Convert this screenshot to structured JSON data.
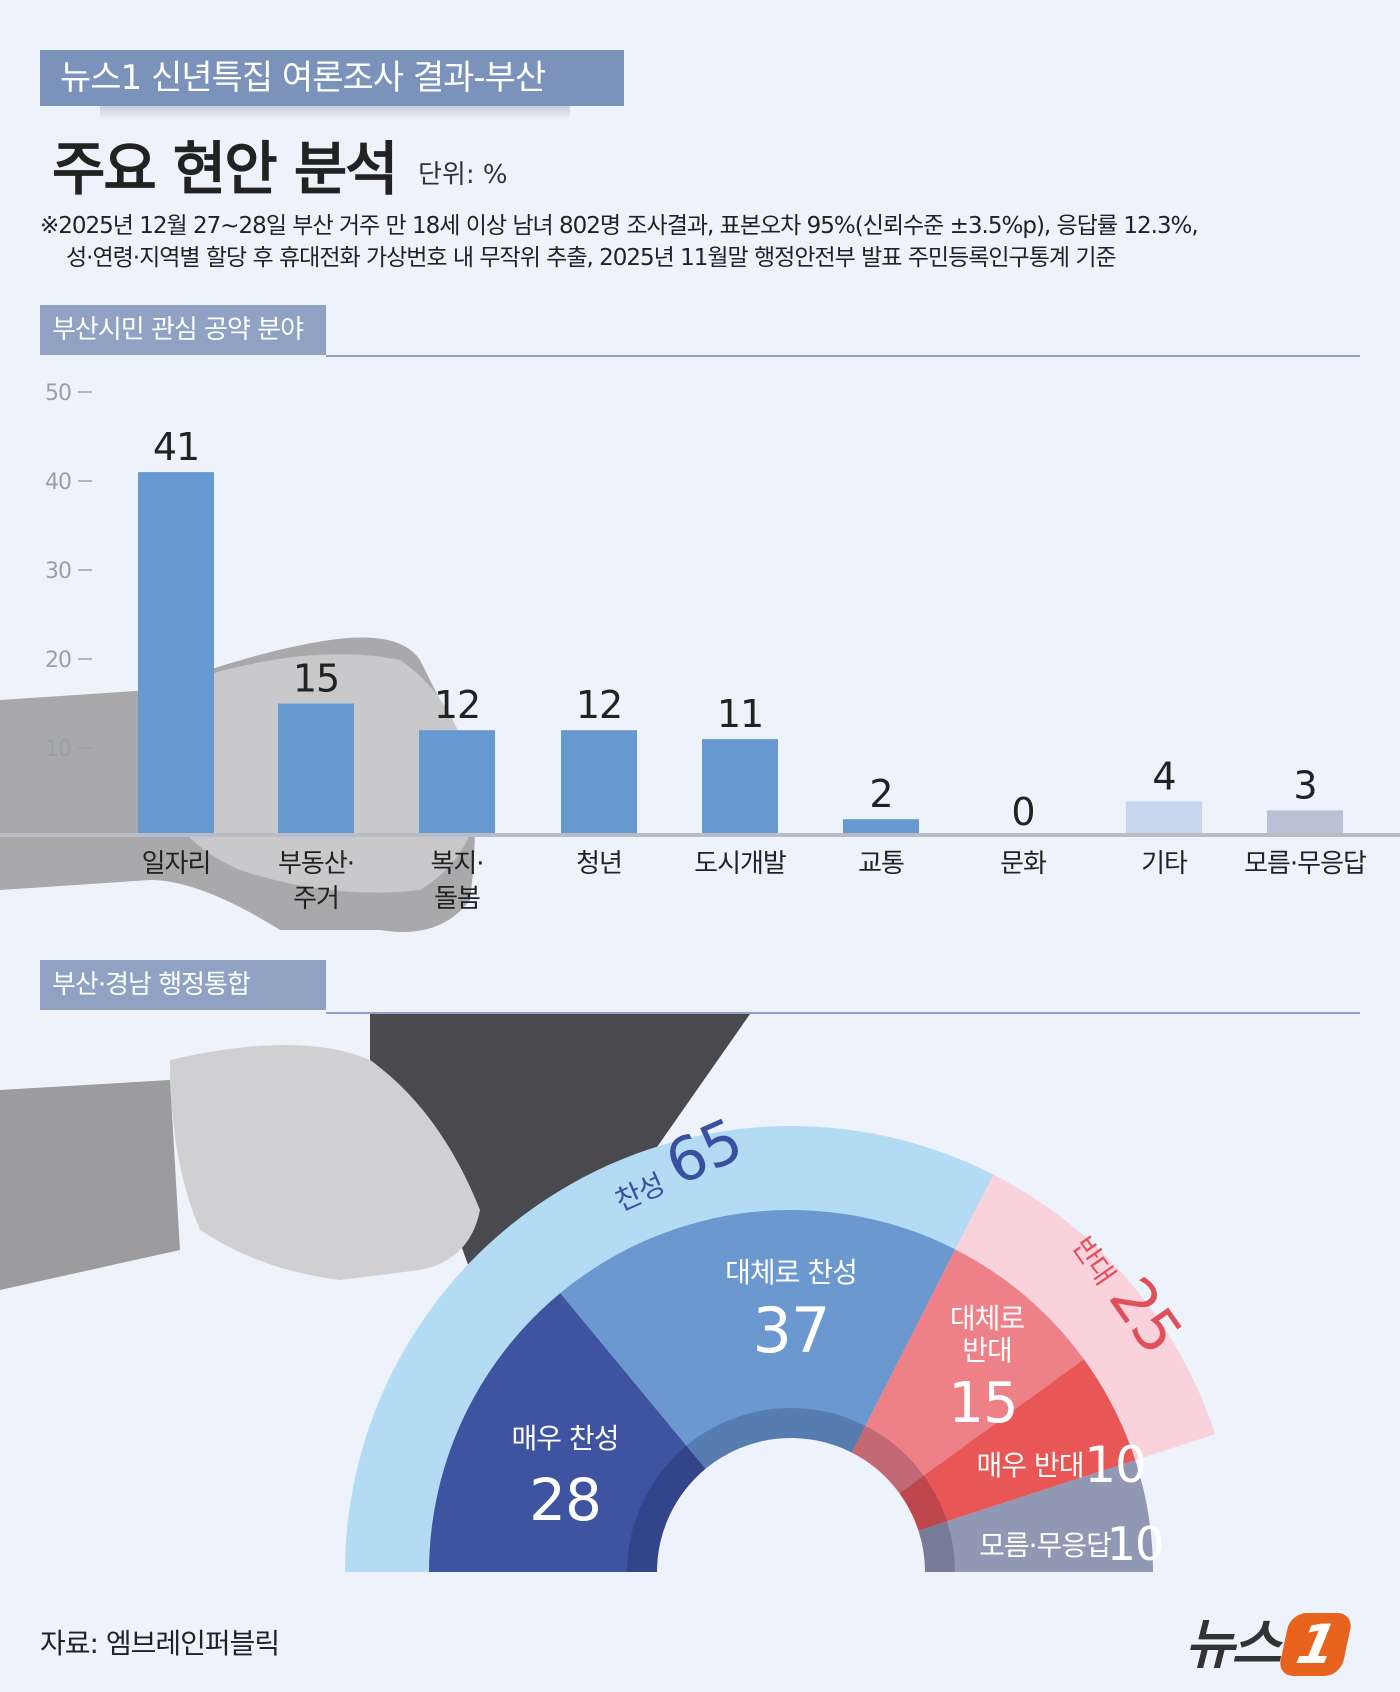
{
  "header": {
    "banner": "뉴스1 신년특집 여론조사 결과-부산",
    "title": "주요 현안 분석",
    "unit": "단위: %",
    "note_line1": "※2025년 12월 27~28일 부산 거주 만 18세 이상 남녀 802명 조사결과, 표본오차 95%(신뢰수준 ±3.5%p), 응답률 12.3%,",
    "note_line2": "성·연령·지역별 할당 후 휴대전화 가상번호 내 무작위 추출,  2025년 11월말 행정안전부 발표 주민등록인구통계 기준"
  },
  "chart_data": [
    {
      "type": "bar",
      "title": "부산시민 관심 공약 분야",
      "ylim": [
        0,
        50
      ],
      "yticks": [
        10,
        20,
        30,
        40,
        50
      ],
      "categories": [
        [
          "일자리"
        ],
        [
          "부동산·",
          "주거"
        ],
        [
          "복지·",
          "돌봄"
        ],
        [
          "청년"
        ],
        [
          "도시개발"
        ],
        [
          "교통"
        ],
        [
          "문화"
        ],
        [
          "기타"
        ],
        [
          "모름·무응답"
        ]
      ],
      "values": [
        41,
        15,
        12,
        12,
        11,
        2,
        0,
        4,
        3
      ],
      "colors": [
        "#6699d0",
        "#6699d0",
        "#6699d0",
        "#6699d0",
        "#6699d0",
        "#6699d0",
        "#6699d0",
        "#c8d6ee",
        "#b9c1d4"
      ]
    },
    {
      "type": "pie",
      "title": "부산·경남 행정통합",
      "style": "semicircle",
      "groups": [
        {
          "label": "찬성",
          "value": 65,
          "color": "#b3dcf4",
          "text_color": "#3a4fa0"
        },
        {
          "label": "반대",
          "value": 25,
          "color": "#f9d2dc",
          "text_color": "#e0505a"
        }
      ],
      "slices": [
        {
          "label": "매우 찬성",
          "value": 28,
          "color": "#3e54a0"
        },
        {
          "label": "대체로 찬성",
          "value": 37,
          "color": "#6b98cf"
        },
        {
          "label": "대체로 반대",
          "value": 15,
          "color": "#ee8088"
        },
        {
          "label": "매우 반대",
          "value": 10,
          "color": "#e85656"
        },
        {
          "label": "모름·무응답",
          "value": 10,
          "color": "#9098b3"
        }
      ]
    }
  ],
  "footer": {
    "source": "자료: 엠브레인퍼블릭",
    "logo_text": "뉴스",
    "logo_num": "1"
  }
}
